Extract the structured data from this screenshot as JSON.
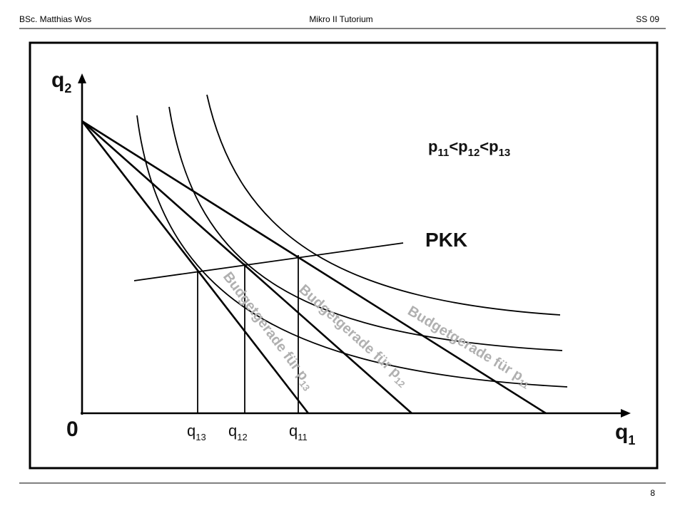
{
  "header": {
    "left": "BSc. Matthias Wos",
    "center": "Mikro II Tutorium",
    "right": "SS 09"
  },
  "footer": {
    "page": "8"
  },
  "diagram": {
    "y_axis_label": {
      "main": "q",
      "sub": "2"
    },
    "x_axis_label": {
      "main": "q",
      "sub": "1"
    },
    "origin_label": "0",
    "x_marks": [
      {
        "main": "q",
        "sub": "13"
      },
      {
        "main": "q",
        "sub": "12"
      },
      {
        "main": "q",
        "sub": "11"
      }
    ],
    "price_order": [
      {
        "main": "p",
        "sub": "11"
      },
      {
        "main": "<p",
        "sub": "12"
      },
      {
        "main": "<p",
        "sub": "13"
      }
    ],
    "curve_label": "PKK",
    "budget_labels": [
      {
        "main": "Budgetgerade für p",
        "sub": "13"
      },
      {
        "main": "Budgetgerade für p",
        "sub": "12"
      },
      {
        "main": "Budgetgerade für p",
        "sub": "11"
      }
    ]
  }
}
